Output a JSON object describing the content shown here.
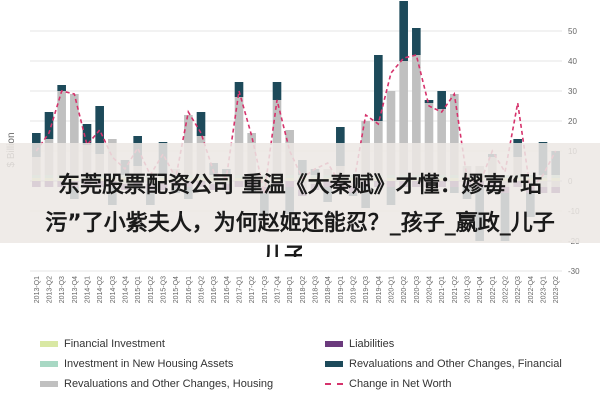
{
  "overlay": {
    "line1": "东莞股票配资公司 重温《大秦赋》才懂：嫪毐“玷",
    "line2": "污”了小紫夫人，为何赵姬还能忍？_孩子_嬴政_儿子",
    "line3": "儿子"
  },
  "chart_data": {
    "type": "bar",
    "ylabel": "$ Billion",
    "ylim": [
      -30,
      50
    ],
    "yticks": [
      -30,
      -20,
      -10,
      0,
      10,
      20,
      30,
      40,
      50
    ],
    "categories": [
      "2013-Q1",
      "2013-Q2",
      "2013-Q3",
      "2013-Q4",
      "2014-Q1",
      "2014-Q2",
      "2014-Q3",
      "2014-Q4",
      "2015-Q1",
      "2015-Q2",
      "2015-Q3",
      "2015-Q4",
      "2016-Q1",
      "2016-Q2",
      "2016-Q3",
      "2016-Q4",
      "2017-Q1",
      "2017-Q2",
      "2017-Q3",
      "2017-Q4",
      "2018-Q1",
      "2018-Q2",
      "2018-Q3",
      "2018-Q4",
      "2019-Q1",
      "2019-Q2",
      "2019-Q3",
      "2019-Q4",
      "2020-Q1",
      "2020-Q2",
      "2020-Q3",
      "2020-Q4",
      "2021-Q1",
      "2021-Q2",
      "2021-Q3",
      "2021-Q4",
      "2022-Q1",
      "2022-Q2",
      "2022-Q3",
      "2022-Q4",
      "2023-Q1",
      "2023-Q2"
    ],
    "series": [
      {
        "name": "Financial Investment",
        "color": "#d9e8a4",
        "values": [
          1,
          1,
          1,
          1,
          1,
          1,
          1,
          1,
          1,
          1,
          1,
          1,
          1,
          1,
          1,
          1,
          1,
          1,
          1,
          1,
          1,
          1,
          1,
          1,
          1,
          1,
          1,
          1,
          1,
          1,
          1,
          1,
          1,
          1,
          1,
          1,
          1,
          1,
          1,
          1,
          1,
          1
        ]
      },
      {
        "name": "Investment in New Housing Assets",
        "color": "#a8d8c4",
        "values": [
          1,
          1,
          1,
          1,
          1,
          1,
          1,
          1,
          1,
          1,
          1,
          1,
          1,
          1,
          1,
          1,
          1,
          1,
          1,
          1,
          1,
          1,
          1,
          1,
          1,
          1,
          1,
          1,
          1,
          1,
          1,
          1,
          1,
          1,
          1,
          1,
          1,
          1,
          1,
          1,
          1,
          1
        ]
      },
      {
        "name": "Revaluations and Other Changes, Housing",
        "color": "#c0c0c0",
        "values": [
          6,
          12,
          28,
          27,
          10,
          7,
          12,
          -1,
          3,
          -1,
          -1,
          2,
          20,
          13,
          -1,
          -1,
          26,
          14,
          -2,
          25,
          15,
          -3,
          -1,
          2,
          3,
          -2,
          18,
          18,
          28,
          38,
          40,
          24,
          22,
          27,
          3,
          3,
          6,
          -2,
          6,
          -2,
          -2,
          -2
        ]
      },
      {
        "name": "Liabilities",
        "color": "#6b3a7d",
        "values": [
          -2,
          -2,
          -2,
          -2,
          -2,
          -2,
          -2,
          -2,
          -2,
          -2,
          -2,
          -2,
          -2,
          -2,
          -2,
          -2,
          -2,
          -2,
          -2,
          -2,
          -2,
          -2,
          -2,
          -2,
          -2,
          -2,
          -2,
          -2,
          -2,
          -2,
          -2,
          -2,
          -2,
          -2,
          -2,
          -2,
          -2,
          -2,
          -2,
          -2,
          -2,
          -2
        ]
      },
      {
        "name": "Revaluations and Other Changes, Financial",
        "color": "#1d4a5a",
        "values": [
          8,
          9,
          2,
          -4,
          7,
          16,
          -6,
          5,
          10,
          -5,
          11,
          -2,
          -4,
          8,
          4,
          2,
          5,
          -2,
          -8,
          6,
          -9,
          5,
          2,
          -5,
          13,
          -1,
          -7,
          22,
          -6,
          20,
          9,
          1,
          6,
          -2,
          -4,
          -18,
          1,
          -16,
          6,
          -8,
          11,
          8
        ]
      },
      {
        "name": "Change in Net Worth",
        "color": "#d6336c",
        "line": true,
        "values": [
          10,
          16,
          30,
          29,
          12,
          17,
          8,
          4,
          11,
          2,
          9,
          1,
          23,
          16,
          3,
          1,
          30,
          15,
          -4,
          27,
          10,
          1,
          4,
          6,
          -1,
          -2,
          22,
          19,
          36,
          41,
          42,
          25,
          23,
          29,
          1,
          -1,
          10,
          3,
          26,
          -3,
          2,
          10
        ]
      }
    ]
  },
  "legend": {
    "financial_investment": "Financial Investment",
    "investment_housing": "Investment in New Housing Assets",
    "reval_housing": "Revaluations and Other Changes, Housing",
    "liabilities": "Liabilities",
    "reval_financial": "Revaluations and Other Changes, Financial",
    "net_worth": "Change in Net Worth"
  }
}
